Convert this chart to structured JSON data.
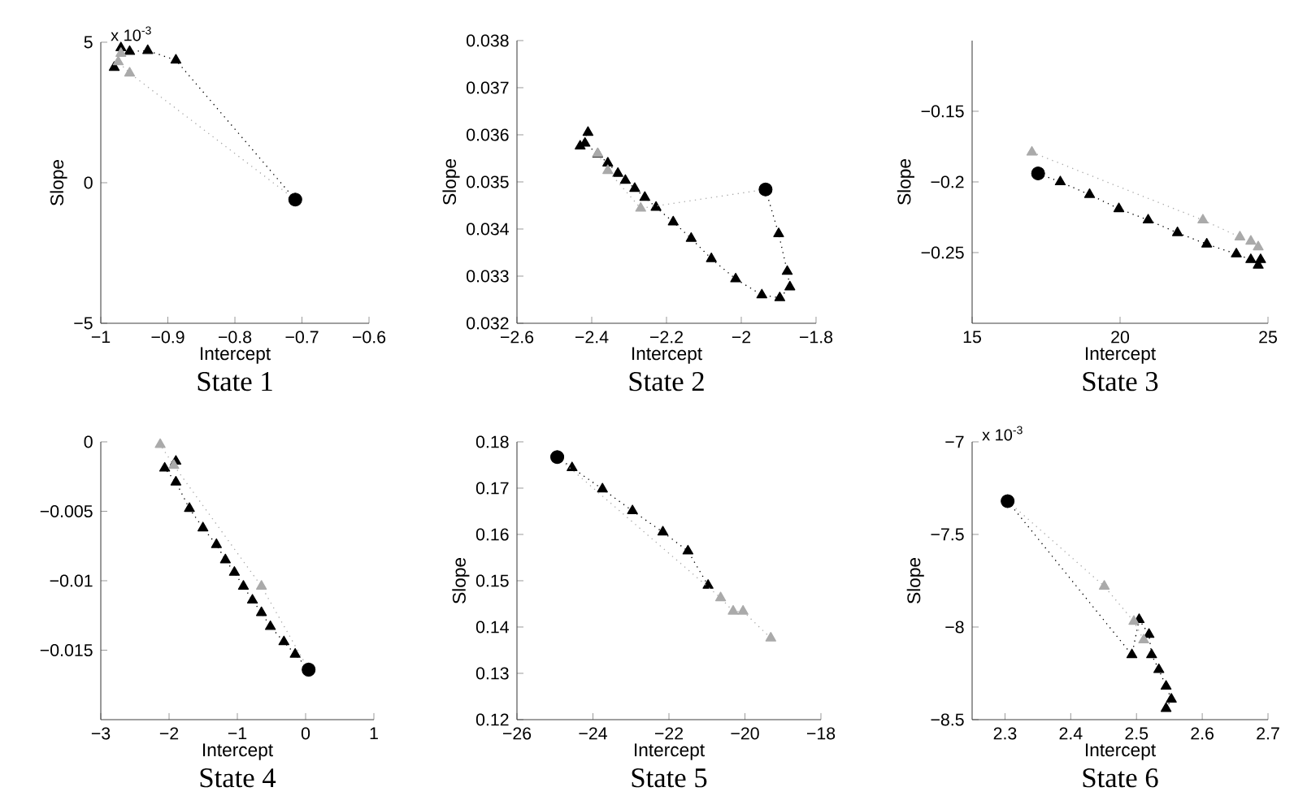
{
  "chart_data": [
    {
      "type": "line",
      "title": "State 1",
      "xlabel": "Intercept",
      "ylabel": "Slope",
      "annotations": [
        "x 10$^{-3}$"
      ],
      "xlim": [
        -1,
        -0.6
      ],
      "ylim": [
        -5,
        5
      ],
      "xticks": [
        {
          "value": -1,
          "label": "−1"
        },
        {
          "value": -0.9,
          "label": "−0.9"
        },
        {
          "value": -0.8,
          "label": "−0.8"
        },
        {
          "value": -0.7,
          "label": "−0.7"
        },
        {
          "value": -0.6,
          "label": "−0.6"
        }
      ],
      "yticks": [
        {
          "value": -5,
          "label": "−5"
        },
        0,
        5
      ],
      "series": [
        {
          "color": "#000000",
          "marker": "triangle",
          "line_style": "dotted",
          "x": [
            -0.71,
            -0.888,
            -0.93,
            -0.957,
            -0.97,
            -0.98
          ],
          "values": [
            -0.6,
            4.36,
            4.7,
            4.67,
            4.8,
            4.1
          ]
        },
        {
          "color": "#aaaaaa",
          "marker": "triangle",
          "line_style": "dotted",
          "x": [
            -0.71,
            -0.957,
            -0.974,
            -0.97
          ],
          "values": [
            -0.6,
            3.9,
            4.3,
            4.6
          ]
        },
        {
          "type": "scatter",
          "color": "#000000",
          "marker": "circle",
          "x": [
            -0.71
          ],
          "values": [
            -0.6
          ]
        }
      ]
    },
    {
      "type": "line",
      "title": "State 2",
      "xlabel": "Intercept",
      "ylabel": "Slope",
      "xlim": [
        -2.6,
        -1.8
      ],
      "ylim": [
        0.032,
        0.038
      ],
      "xticks": [
        {
          "value": -2.6,
          "label": "−2.6"
        },
        {
          "value": -2.4,
          "label": "−2.4"
        },
        {
          "value": -2.2,
          "label": "−2.2"
        },
        {
          "value": -2,
          "label": "−2"
        },
        {
          "value": -1.8,
          "label": "−1.8"
        }
      ],
      "yticks": [
        0.032,
        0.033,
        0.034,
        0.035,
        0.036,
        0.037,
        0.038
      ],
      "series": [
        {
          "color": "#000000",
          "marker": "triangle",
          "line_style": "dotted",
          "x": [
            -1.935,
            -1.9,
            -1.877,
            -1.87,
            -1.897,
            -1.945,
            -2.015,
            -2.08,
            -2.134,
            -2.182,
            -2.228,
            -2.258,
            -2.285,
            -2.31,
            -2.33,
            -2.357,
            -2.384,
            -2.418,
            -2.431,
            -2.41
          ],
          "values": [
            0.03484,
            0.0339,
            0.0331,
            0.03277,
            0.03254,
            0.0326,
            0.03294,
            0.03337,
            0.0338,
            0.03415,
            0.03446,
            0.03467,
            0.03486,
            0.03503,
            0.03518,
            0.0354,
            0.03559,
            0.03582,
            0.03576,
            0.03605
          ]
        },
        {
          "color": "#aaaaaa",
          "marker": "triangle",
          "line_style": "dotted",
          "x": [
            -1.935,
            -2.269,
            -2.357,
            -2.384
          ],
          "values": [
            0.03484,
            0.03444,
            0.03524,
            0.0356
          ]
        },
        {
          "type": "scatter",
          "color": "#000000",
          "marker": "circle",
          "x": [
            -1.935
          ],
          "values": [
            0.03484
          ]
        }
      ]
    },
    {
      "type": "line",
      "title": "State 3",
      "xlabel": "Intercept",
      "ylabel": "Slope",
      "xlim": [
        15,
        25
      ],
      "ylim": [
        -0.3,
        -0.1
      ],
      "xticks": [
        15,
        20,
        25
      ],
      "yticks": [
        {
          "value": -0.25,
          "label": "−0.25"
        },
        {
          "value": -0.2,
          "label": "−0.2"
        },
        {
          "value": -0.15,
          "label": "−0.15"
        }
      ],
      "series": [
        {
          "color": "#000000",
          "marker": "triangle",
          "line_style": "dotted",
          "x": [
            17.23,
            17.98,
            18.97,
            19.96,
            20.95,
            21.94,
            22.93,
            23.93,
            24.42,
            24.67,
            24.75
          ],
          "values": [
            -0.194,
            -0.2,
            -0.209,
            -0.219,
            -0.227,
            -0.236,
            -0.244,
            -0.251,
            -0.255,
            -0.259,
            -0.255
          ]
        },
        {
          "color": "#aaaaaa",
          "marker": "triangle",
          "line_style": "dotted",
          "x": [
            17.02,
            22.8,
            24.05,
            24.42,
            24.67
          ],
          "values": [
            -0.179,
            -0.227,
            -0.239,
            -0.242,
            -0.246
          ]
        },
        {
          "type": "scatter",
          "color": "#000000",
          "marker": "circle",
          "x": [
            17.23
          ],
          "values": [
            -0.194
          ]
        }
      ]
    },
    {
      "type": "line",
      "title": "State 4",
      "xlabel": "Intercept",
      "xlim": [
        -3,
        1
      ],
      "ylim": [
        -0.02,
        0
      ],
      "xticks": [
        {
          "value": -3,
          "label": "−3"
        },
        {
          "value": -2,
          "label": "−2"
        },
        {
          "value": -1,
          "label": "−1"
        },
        0,
        1
      ],
      "yticks": [
        {
          "value": -0.015,
          "label": "−0.015"
        },
        {
          "value": -0.01,
          "label": "−0.01"
        },
        {
          "value": -0.005,
          "label": "−0.005"
        },
        0
      ],
      "series": [
        {
          "color": "#000000",
          "marker": "triangle",
          "line_style": "dotted",
          "x": [
            0.044,
            -0.153,
            -0.318,
            -0.516,
            -0.647,
            -0.779,
            -0.911,
            -1.043,
            -1.175,
            -1.306,
            -1.504,
            -1.702,
            -1.9,
            -2.064,
            -1.9
          ],
          "values": [
            -0.0164,
            -0.0153,
            -0.0144,
            -0.0133,
            -0.0123,
            -0.0114,
            -0.0104,
            -0.0094,
            -0.0085,
            -0.0074,
            -0.0062,
            -0.0048,
            -0.0029,
            -0.0019,
            -0.0014
          ]
        },
        {
          "color": "#aaaaaa",
          "marker": "triangle",
          "line_style": "dotted",
          "x": [
            0.044,
            -0.647,
            -1.93,
            -2.13
          ],
          "values": [
            -0.0164,
            -0.0104,
            -0.0017,
            -0.0002
          ]
        },
        {
          "type": "scatter",
          "color": "#000000",
          "marker": "circle",
          "x": [
            0.044
          ],
          "values": [
            -0.0164
          ]
        }
      ]
    },
    {
      "type": "line",
      "title": "State 5",
      "xlabel": "Intercept",
      "ylabel": "Slope",
      "xlim": [
        -26,
        -18
      ],
      "ylim": [
        0.12,
        0.18
      ],
      "xticks": [
        {
          "value": -26,
          "label": "−26"
        },
        {
          "value": -24,
          "label": "−24"
        },
        {
          "value": -22,
          "label": "−22"
        },
        {
          "value": -20,
          "label": "−20"
        },
        {
          "value": -18,
          "label": "−18"
        }
      ],
      "yticks": [
        0.12,
        0.13,
        0.14,
        0.15,
        0.16,
        0.17,
        0.18
      ],
      "series": [
        {
          "color": "#000000",
          "marker": "triangle",
          "line_style": "dotted",
          "x": [
            -24.94,
            -24.55,
            -23.75,
            -22.96,
            -22.16,
            -21.5,
            -20.97
          ],
          "values": [
            0.1767,
            0.1744,
            0.1698,
            0.1651,
            0.1605,
            0.1564,
            0.149
          ]
        },
        {
          "color": "#aaaaaa",
          "marker": "triangle",
          "line_style": "dotted",
          "x": [
            -24.94,
            -20.64,
            -20.31,
            -20.05,
            -19.32
          ],
          "values": [
            0.1767,
            0.1463,
            0.1434,
            0.1434,
            0.1376
          ]
        },
        {
          "type": "scatter",
          "color": "#000000",
          "marker": "circle",
          "x": [
            -24.94
          ],
          "values": [
            0.1767
          ]
        }
      ]
    },
    {
      "type": "line",
      "title": "State 6",
      "xlabel": "Intercept",
      "ylabel": "Slope",
      "annotations": [
        "x 10$^{-3}$"
      ],
      "xlim": [
        2.25,
        2.7
      ],
      "ylim": [
        -8.5,
        -7
      ],
      "xticks": [
        2.3,
        2.4,
        2.5,
        2.6,
        2.7
      ],
      "yticks": [
        {
          "value": -8.5,
          "label": "−8.5"
        },
        {
          "value": -8,
          "label": "−8"
        },
        {
          "value": -7.5,
          "label": "−7.5"
        },
        {
          "value": -7,
          "label": "−7"
        }
      ],
      "series": [
        {
          "color": "#000000",
          "marker": "triangle",
          "line_style": "dotted",
          "x": [
            2.304,
            2.493,
            2.504,
            2.519,
            2.523,
            2.534,
            2.545,
            2.553,
            2.545
          ],
          "values": [
            -7.32,
            -8.15,
            -7.96,
            -8.04,
            -8.15,
            -8.23,
            -8.32,
            -8.39,
            -8.44
          ]
        },
        {
          "color": "#aaaaaa",
          "marker": "triangle",
          "line_style": "dotted",
          "x": [
            2.304,
            2.451,
            2.496,
            2.511
          ],
          "values": [
            -7.32,
            -7.78,
            -7.97,
            -8.07
          ]
        },
        {
          "type": "scatter",
          "color": "#000000",
          "marker": "circle",
          "x": [
            2.304
          ],
          "values": [
            -7.32
          ]
        }
      ]
    }
  ]
}
